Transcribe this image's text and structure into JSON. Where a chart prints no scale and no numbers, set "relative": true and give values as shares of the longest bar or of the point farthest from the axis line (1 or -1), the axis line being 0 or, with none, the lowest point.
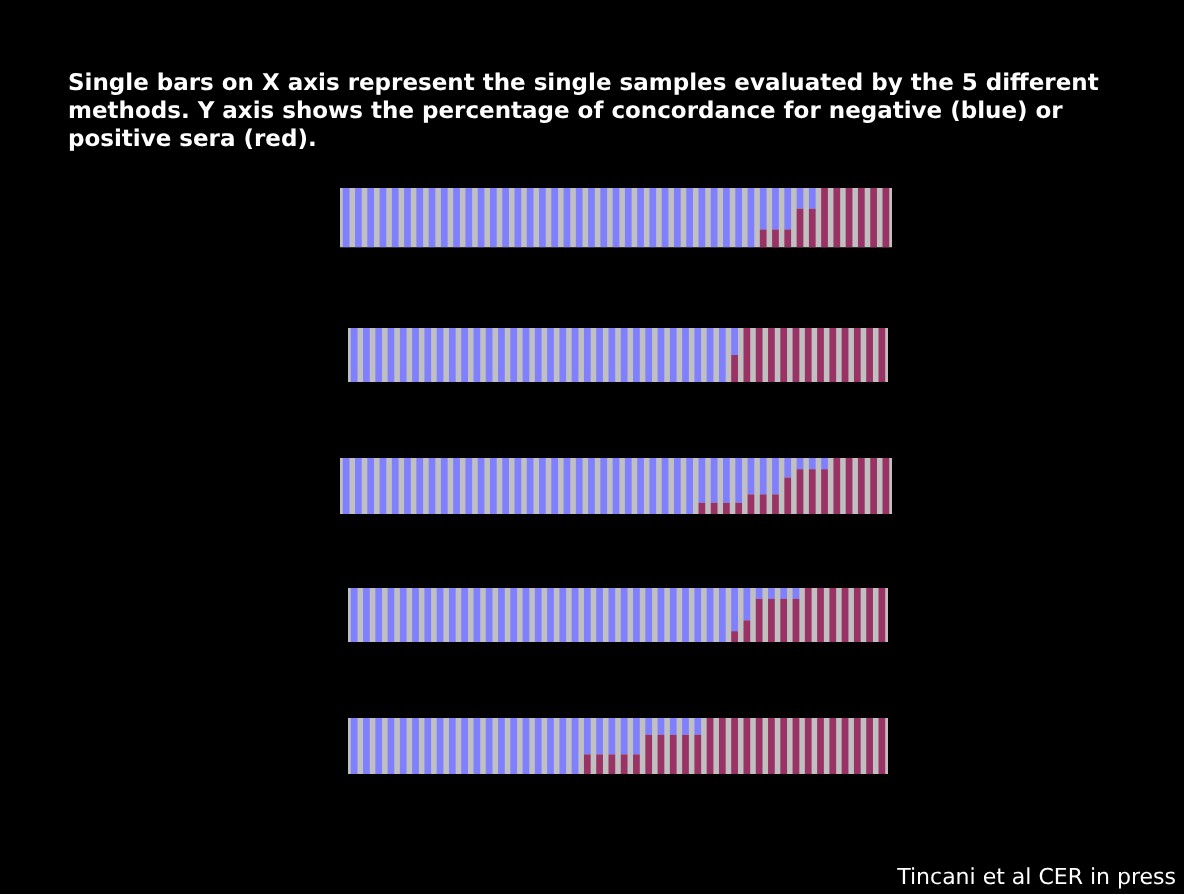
{
  "chart_data": [
    {
      "type": "bar",
      "title": "Single bars on X axis represent the single samples evaluated by the 5 different methods. Y axis shows the percentage of concordance for negative (blue) or positive sera (red).",
      "stacked": true,
      "relative": true,
      "legend": false,
      "categories": [
        null,
        null,
        null,
        null,
        null,
        null,
        null,
        null,
        null,
        null,
        null,
        null,
        null,
        null,
        null,
        null,
        null,
        null,
        null,
        null,
        null,
        null,
        null,
        null,
        null,
        null,
        null,
        null,
        null,
        null,
        null,
        null,
        null,
        null,
        null,
        null,
        null,
        null,
        null,
        null,
        null,
        null,
        null,
        null,
        null
      ],
      "series": [
        {
          "color": "#993366",
          "values": [
            0,
            0,
            0,
            0,
            0,
            0,
            0,
            0,
            0,
            0,
            0,
            0,
            0,
            0,
            0,
            0,
            0,
            0,
            0,
            0,
            0,
            0,
            0,
            0,
            0,
            0,
            0,
            0,
            0,
            0,
            0,
            0,
            0,
            0,
            0.3,
            0.3,
            0.3,
            0.65,
            0.65,
            1,
            1,
            1,
            1,
            1,
            1
          ]
        },
        {
          "color": "#8080ff",
          "values": [
            1,
            1,
            1,
            1,
            1,
            1,
            1,
            1,
            1,
            1,
            1,
            1,
            1,
            1,
            1,
            1,
            1,
            1,
            1,
            1,
            1,
            1,
            1,
            1,
            1,
            1,
            1,
            1,
            1,
            1,
            1,
            1,
            1,
            1,
            0.7,
            0.7,
            0.7,
            0.35,
            0.35,
            0,
            0,
            0,
            0,
            0,
            0
          ]
        }
      ]
    },
    {
      "type": "bar",
      "stacked": true,
      "relative": true,
      "legend": false,
      "categories": [
        null,
        null,
        null,
        null,
        null,
        null,
        null,
        null,
        null,
        null,
        null,
        null,
        null,
        null,
        null,
        null,
        null,
        null,
        null,
        null,
        null,
        null,
        null,
        null,
        null,
        null,
        null,
        null,
        null,
        null,
        null,
        null,
        null,
        null,
        null,
        null,
        null,
        null,
        null,
        null,
        null,
        null,
        null,
        null
      ],
      "series": [
        {
          "color": "#993366",
          "values": [
            0,
            0,
            0,
            0,
            0,
            0,
            0,
            0,
            0,
            0,
            0,
            0,
            0,
            0,
            0,
            0,
            0,
            0,
            0,
            0,
            0,
            0,
            0,
            0,
            0,
            0,
            0,
            0,
            0,
            0,
            0,
            0.5,
            1,
            1,
            1,
            1,
            1,
            1,
            1,
            1,
            1,
            1,
            1,
            1
          ]
        },
        {
          "color": "#8080ff",
          "values": [
            1,
            1,
            1,
            1,
            1,
            1,
            1,
            1,
            1,
            1,
            1,
            1,
            1,
            1,
            1,
            1,
            1,
            1,
            1,
            1,
            1,
            1,
            1,
            1,
            1,
            1,
            1,
            1,
            1,
            1,
            1,
            0.5,
            0,
            0,
            0,
            0,
            0,
            0,
            0,
            0,
            0,
            0,
            0,
            0
          ]
        }
      ]
    },
    {
      "type": "bar",
      "stacked": true,
      "relative": true,
      "legend": false,
      "categories": [
        null,
        null,
        null,
        null,
        null,
        null,
        null,
        null,
        null,
        null,
        null,
        null,
        null,
        null,
        null,
        null,
        null,
        null,
        null,
        null,
        null,
        null,
        null,
        null,
        null,
        null,
        null,
        null,
        null,
        null,
        null,
        null,
        null,
        null,
        null,
        null,
        null,
        null,
        null,
        null,
        null,
        null,
        null,
        null,
        null
      ],
      "series": [
        {
          "color": "#993366",
          "values": [
            0,
            0,
            0,
            0,
            0,
            0,
            0,
            0,
            0,
            0,
            0,
            0,
            0,
            0,
            0,
            0,
            0,
            0,
            0,
            0,
            0,
            0,
            0,
            0,
            0,
            0,
            0,
            0,
            0,
            0.2,
            0.2,
            0.2,
            0.2,
            0.35,
            0.35,
            0.35,
            0.65,
            0.8,
            0.8,
            0.8,
            1,
            1,
            1,
            1,
            1
          ]
        },
        {
          "color": "#8080ff",
          "values": [
            1,
            1,
            1,
            1,
            1,
            1,
            1,
            1,
            1,
            1,
            1,
            1,
            1,
            1,
            1,
            1,
            1,
            1,
            1,
            1,
            1,
            1,
            1,
            1,
            1,
            1,
            1,
            1,
            1,
            0.8,
            0.8,
            0.8,
            0.8,
            0.65,
            0.65,
            0.65,
            0.35,
            0.2,
            0.2,
            0.2,
            0,
            0,
            0,
            0,
            0
          ]
        }
      ]
    },
    {
      "type": "bar",
      "stacked": true,
      "relative": true,
      "legend": false,
      "categories": [
        null,
        null,
        null,
        null,
        null,
        null,
        null,
        null,
        null,
        null,
        null,
        null,
        null,
        null,
        null,
        null,
        null,
        null,
        null,
        null,
        null,
        null,
        null,
        null,
        null,
        null,
        null,
        null,
        null,
        null,
        null,
        null,
        null,
        null,
        null,
        null,
        null,
        null,
        null,
        null,
        null,
        null,
        null,
        null
      ],
      "series": [
        {
          "color": "#993366",
          "values": [
            0,
            0,
            0,
            0,
            0,
            0,
            0,
            0,
            0,
            0,
            0,
            0,
            0,
            0,
            0,
            0,
            0,
            0,
            0,
            0,
            0,
            0,
            0,
            0,
            0,
            0,
            0,
            0,
            0,
            0,
            0,
            0.2,
            0.4,
            0.8,
            0.8,
            0.8,
            0.8,
            1,
            1,
            1,
            1,
            1,
            1,
            1
          ]
        },
        {
          "color": "#8080ff",
          "values": [
            1,
            1,
            1,
            1,
            1,
            1,
            1,
            1,
            1,
            1,
            1,
            1,
            1,
            1,
            1,
            1,
            1,
            1,
            1,
            1,
            1,
            1,
            1,
            1,
            1,
            1,
            1,
            1,
            1,
            1,
            1,
            0.8,
            0.6,
            0.2,
            0.2,
            0.2,
            0.2,
            0,
            0,
            0,
            0,
            0,
            0,
            0
          ]
        }
      ]
    },
    {
      "type": "bar",
      "stacked": true,
      "relative": true,
      "legend": false,
      "annotations": [
        "Tincani et al CER in press"
      ],
      "categories": [
        null,
        null,
        null,
        null,
        null,
        null,
        null,
        null,
        null,
        null,
        null,
        null,
        null,
        null,
        null,
        null,
        null,
        null,
        null,
        null,
        null,
        null,
        null,
        null,
        null,
        null,
        null,
        null,
        null,
        null,
        null,
        null,
        null,
        null,
        null,
        null,
        null,
        null,
        null,
        null,
        null,
        null,
        null,
        null
      ],
      "series": [
        {
          "color": "#993366",
          "values": [
            0,
            0,
            0,
            0,
            0,
            0,
            0,
            0,
            0,
            0,
            0,
            0,
            0,
            0,
            0,
            0,
            0,
            0,
            0,
            0.35,
            0.35,
            0.35,
            0.35,
            0.35,
            0.7,
            0.7,
            0.7,
            0.7,
            0.7,
            1,
            1,
            1,
            1,
            1,
            1,
            1,
            1,
            1,
            1,
            1,
            1,
            1,
            1,
            1
          ]
        },
        {
          "color": "#8080ff",
          "values": [
            1,
            1,
            1,
            1,
            1,
            1,
            1,
            1,
            1,
            1,
            1,
            1,
            1,
            1,
            1,
            1,
            1,
            1,
            1,
            0.65,
            0.65,
            0.65,
            0.65,
            0.65,
            0.3,
            0.3,
            0.3,
            0.3,
            0.3,
            0,
            0,
            0,
            0,
            0,
            0,
            0,
            0,
            0,
            0,
            0,
            0,
            0,
            0,
            0
          ]
        }
      ]
    }
  ]
}
